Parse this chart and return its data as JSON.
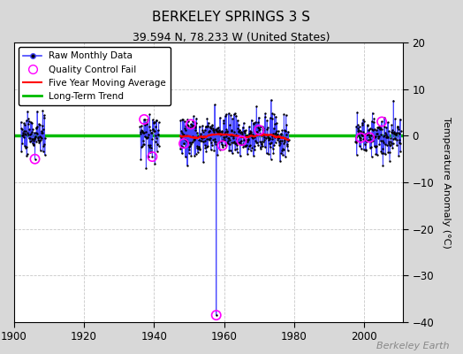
{
  "title": "BERKELEY SPRINGS 3 S",
  "subtitle": "39.594 N, 78.233 W (United States)",
  "ylabel": "Temperature Anomaly (°C)",
  "watermark": "Berkeley Earth",
  "xlim": [
    1900,
    2011
  ],
  "ylim": [
    -40,
    20
  ],
  "yticks": [
    -40,
    -30,
    -20,
    -10,
    0,
    10,
    20
  ],
  "xticks": [
    1900,
    1920,
    1940,
    1960,
    1980,
    2000
  ],
  "outer_bg_color": "#d8d8d8",
  "plot_bg_color": "#ffffff",
  "grid_color": "#c8c8c8",
  "seg1_x_start": 1902.0,
  "seg1_x_end": 1909.0,
  "seg2_x_start": 1936.0,
  "seg2_x_end": 1941.5,
  "seg3_x_start": 1947.5,
  "seg3_x_end": 1978.5,
  "seg4_x_start": 1997.5,
  "seg4_x_end": 2010.5,
  "spike_year": 1957.75,
  "spike_value": -38.5,
  "long_term_trend_y": 0.15,
  "rand_seed_seg1": 10,
  "rand_seed_seg2": 20,
  "rand_seed_seg3": 30,
  "rand_seed_seg4": 40,
  "data_std": 2.2
}
